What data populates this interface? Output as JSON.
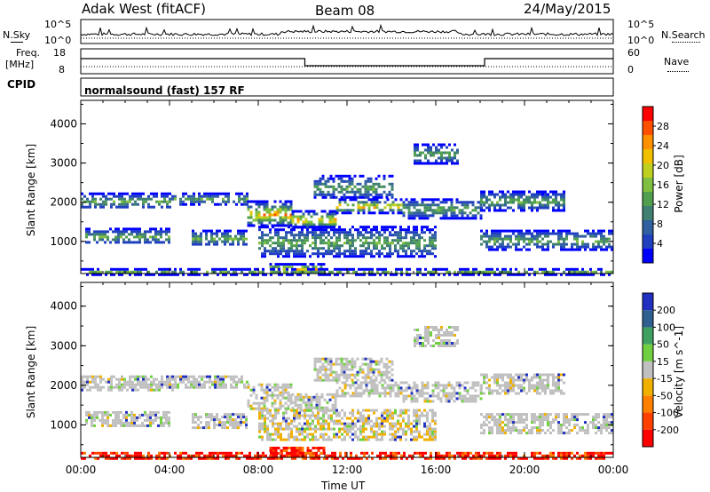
{
  "header": {
    "radar": "Adak West (fitACF)",
    "beam": "Beam 08",
    "date": "24/May/2015"
  },
  "top_panels": {
    "nsky_label": "N.Sky",
    "nsky_ticks": [
      "10^5",
      "10^0"
    ],
    "nsearch_label": "N.Search",
    "nsearch_ticks": [
      "10^5",
      "10^0"
    ],
    "freq_label_1": "Freq.",
    "freq_label_2": "[MHz]",
    "freq_ticks": [
      "18",
      "8"
    ],
    "nave_label": "Nave",
    "nave_ticks": [
      "60",
      "0"
    ],
    "cpid_label": "CPID",
    "cpid_text": "normalsound (fast) 157 RF"
  },
  "chart_data": [
    {
      "type": "heatmap",
      "title": "",
      "ylabel": "Slant Range [km]",
      "xlabel": "",
      "ylim": [
        180,
        4600
      ],
      "yticks": [
        "4000",
        "3000",
        "2000",
        "1000"
      ],
      "xlim": [
        "00:00",
        "24:00"
      ],
      "colorbar": {
        "label": "Power [dB]",
        "ticks": [
          "28",
          "24",
          "20",
          "16",
          "12",
          "8",
          "4"
        ],
        "colors": [
          "#0000ff",
          "#2040c0",
          "#3060a0",
          "#408070",
          "#50a050",
          "#80c040",
          "#c0d020",
          "#f0c000",
          "#ff9000",
          "#ff5000",
          "#ff0000"
        ]
      },
      "bands": [
        {
          "t0": 0.0,
          "t1": 4.2,
          "r0": 1850,
          "r1": 2250
        },
        {
          "t0": 4.2,
          "t1": 7.5,
          "r0": 1950,
          "r1": 2250
        },
        {
          "t0": 7.5,
          "t1": 9.5,
          "r0": 1400,
          "r1": 2050
        },
        {
          "t0": 9.5,
          "t1": 11.5,
          "r0": 1350,
          "r1": 1800
        },
        {
          "t0": 11.5,
          "t1": 14.5,
          "r0": 1750,
          "r1": 2100
        },
        {
          "t0": 14.5,
          "t1": 18.0,
          "r0": 1600,
          "r1": 2100
        },
        {
          "t0": 18.0,
          "t1": 21.8,
          "r0": 1800,
          "r1": 2300
        },
        {
          "t0": 0.2,
          "t1": 4.0,
          "r0": 950,
          "r1": 1350
        },
        {
          "t0": 5.0,
          "t1": 7.5,
          "r0": 900,
          "r1": 1300
        },
        {
          "t0": 8.0,
          "t1": 16.0,
          "r0": 600,
          "r1": 1400
        },
        {
          "t0": 18.0,
          "t1": 24.0,
          "r0": 800,
          "r1": 1300
        },
        {
          "t0": 10.5,
          "t1": 14.0,
          "r0": 2100,
          "r1": 2700
        },
        {
          "t0": 15.0,
          "t1": 17.0,
          "r0": 3000,
          "r1": 3500
        },
        {
          "t0": 8.5,
          "t1": 11.0,
          "r0": 200,
          "r1": 450
        },
        {
          "t0": 0.0,
          "t1": 24.0,
          "r0": 180,
          "r1": 320
        }
      ]
    },
    {
      "type": "heatmap",
      "title": "",
      "ylabel": "Slant Range [km]",
      "xlabel": "Time UT",
      "ylim": [
        180,
        4600
      ],
      "yticks": [
        "4000",
        "3000",
        "2000",
        "1000"
      ],
      "xticks": [
        "00:00",
        "04:00",
        "08:00",
        "12:00",
        "16:00",
        "20:00",
        "00:00"
      ],
      "colorbar": {
        "label": "Velocity [m s^-1]",
        "ticks": [
          "200",
          "100",
          "50",
          "15",
          "-15",
          "-50",
          "-100",
          "-200"
        ],
        "colors": [
          "#2030c0",
          "#306090",
          "#40a060",
          "#70d040",
          "#c0c0c0",
          "#f0b000",
          "#ff8000",
          "#ff4000",
          "#ff0000"
        ]
      },
      "bands": [
        {
          "t0": 0.0,
          "t1": 4.2,
          "r0": 1850,
          "r1": 2250
        },
        {
          "t0": 4.2,
          "t1": 7.5,
          "r0": 1950,
          "r1": 2250
        },
        {
          "t0": 7.5,
          "t1": 9.5,
          "r0": 1400,
          "r1": 2050
        },
        {
          "t0": 9.5,
          "t1": 11.5,
          "r0": 1350,
          "r1": 1800
        },
        {
          "t0": 11.5,
          "t1": 14.5,
          "r0": 1750,
          "r1": 2100
        },
        {
          "t0": 14.5,
          "t1": 18.0,
          "r0": 1600,
          "r1": 2100
        },
        {
          "t0": 18.0,
          "t1": 21.8,
          "r0": 1800,
          "r1": 2300
        },
        {
          "t0": 0.2,
          "t1": 4.0,
          "r0": 950,
          "r1": 1350
        },
        {
          "t0": 5.0,
          "t1": 7.5,
          "r0": 900,
          "r1": 1300
        },
        {
          "t0": 8.0,
          "t1": 16.0,
          "r0": 600,
          "r1": 1400
        },
        {
          "t0": 18.0,
          "t1": 24.0,
          "r0": 800,
          "r1": 1300
        },
        {
          "t0": 10.5,
          "t1": 14.0,
          "r0": 2100,
          "r1": 2700
        },
        {
          "t0": 15.0,
          "t1": 17.0,
          "r0": 3000,
          "r1": 3500
        },
        {
          "t0": 8.5,
          "t1": 11.0,
          "r0": 200,
          "r1": 450
        },
        {
          "t0": 0.0,
          "t1": 24.0,
          "r0": 180,
          "r1": 320
        }
      ]
    }
  ]
}
